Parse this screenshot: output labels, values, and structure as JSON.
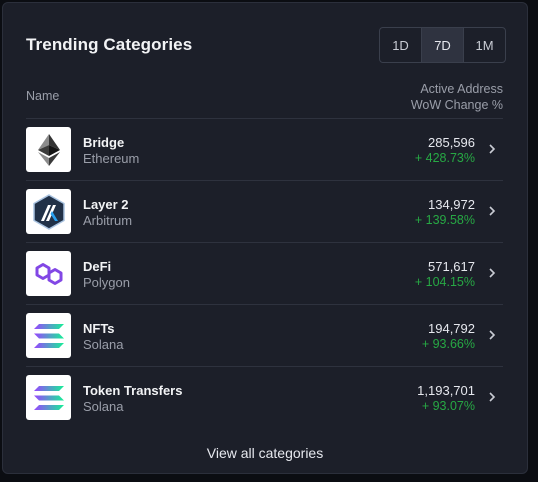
{
  "card": {
    "title": "Trending Categories",
    "ranges": [
      "1D",
      "7D",
      "1M"
    ],
    "active_range": "7D"
  },
  "table": {
    "col_name": "Name",
    "col_change_line1": "Active Address",
    "col_change_line2": "WoW Change %",
    "rows": [
      {
        "name": "Bridge",
        "chain": "Ethereum",
        "addresses": "285,596",
        "change": "+ 428.73%",
        "icon": "ethereum-icon"
      },
      {
        "name": "Layer 2",
        "chain": "Arbitrum",
        "addresses": "134,972",
        "change": "+ 139.58%",
        "icon": "arbitrum-icon"
      },
      {
        "name": "DeFi",
        "chain": "Polygon",
        "addresses": "571,617",
        "change": "+ 104.15%",
        "icon": "polygon-icon"
      },
      {
        "name": "NFTs",
        "chain": "Solana",
        "addresses": "194,792",
        "change": "+ 93.66%",
        "icon": "solana-icon"
      },
      {
        "name": "Token Transfers",
        "chain": "Solana",
        "addresses": "1,193,701",
        "change": "+ 93.07%",
        "icon": "solana-icon"
      }
    ]
  },
  "footer": {
    "view_all": "View all categories"
  },
  "colors": {
    "card_bg": "#1c1f29",
    "positive": "#27a844",
    "text_primary": "#f2f3f5",
    "text_muted": "#9a9ea9"
  }
}
